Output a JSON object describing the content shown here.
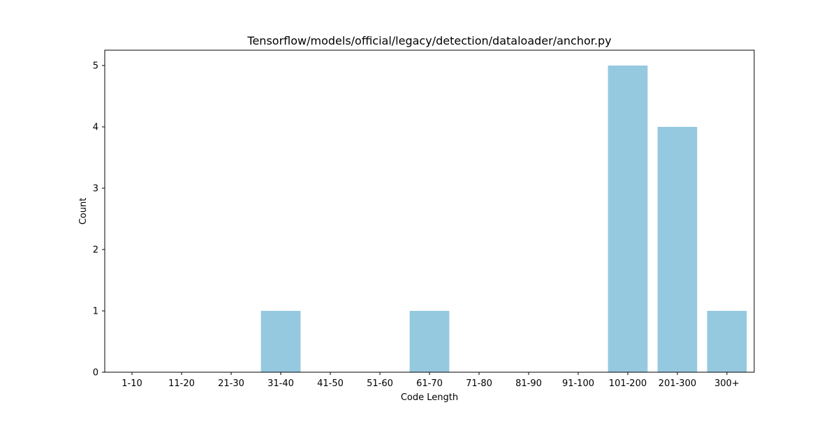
{
  "chart_data": {
    "type": "bar",
    "title": "Tensorflow/models/official/legacy/detection/dataloader/anchor.py",
    "xlabel": "Code Length",
    "ylabel": "Count",
    "categories": [
      "1-10",
      "11-20",
      "21-30",
      "31-40",
      "41-50",
      "51-60",
      "61-70",
      "71-80",
      "81-90",
      "91-100",
      "101-200",
      "201-300",
      "300+"
    ],
    "values": [
      0,
      0,
      0,
      1,
      0,
      0,
      1,
      0,
      0,
      0,
      5,
      4,
      1
    ],
    "ylim": [
      0,
      5.25
    ],
    "yticks": [
      0,
      1,
      2,
      3,
      4,
      5
    ],
    "grid": false,
    "legend": "none",
    "bar_color": "#95c9df"
  }
}
